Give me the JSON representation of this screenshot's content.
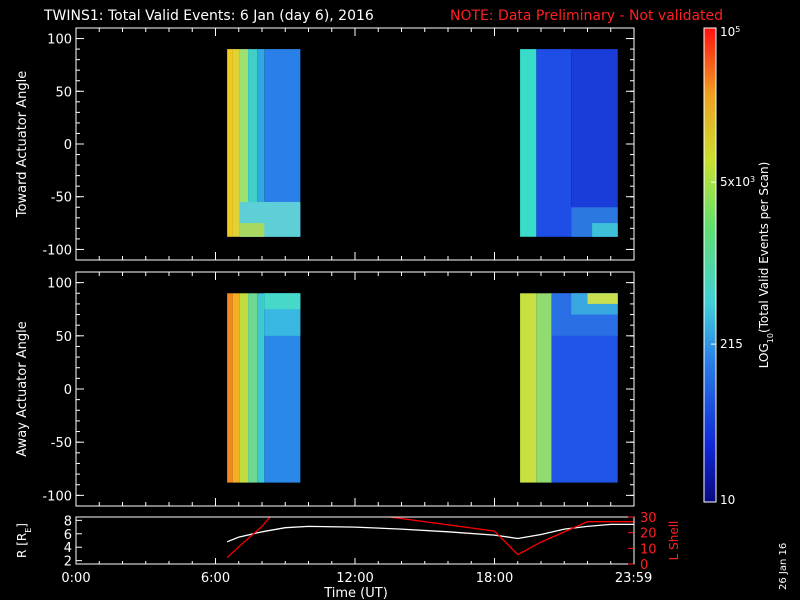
{
  "header": {
    "title": "TWINS1: Total Valid Events:  6 Jan (day   6), 2016",
    "note": "NOTE: Data Preliminary - Not validated"
  },
  "colors": {
    "background": "#000000",
    "axis": "#ffffff",
    "note": "#ff0000",
    "r_line": "#ffffff",
    "lshell_line": "#ff0000"
  },
  "colorbar": {
    "label": "LOG10(Total Valid Events per Scan)",
    "label_main": "LOG",
    "label_sub": "10",
    "label_rest": "(Total Valid Events per Scan)",
    "ticks": [
      {
        "label": "10^5",
        "base": "10",
        "exp": "5",
        "value": 100000
      },
      {
        "label": "5x10^3",
        "base": "5x10",
        "exp": "3",
        "value": 5000
      },
      {
        "label": "215",
        "base": "215",
        "exp": "",
        "value": 215
      },
      {
        "label": "10",
        "base": "10",
        "exp": "",
        "value": 10
      }
    ],
    "range": [
      10,
      100000
    ],
    "scale": "log",
    "colormap": "rainbow (dark blue → cyan → green → yellow → red)"
  },
  "stamp": "26 Jan 16",
  "x_axis": {
    "label": "Time (UT)",
    "ticks": [
      "0:00",
      "6:00",
      "12:00",
      "18:00",
      "23:59"
    ],
    "tick_hours": [
      0,
      6,
      12,
      18,
      23.983
    ],
    "range_hours": [
      0,
      24
    ]
  },
  "chart_data": [
    {
      "type": "heatmap",
      "ylabel": "Toward Actuator Angle",
      "ylim": [
        -110,
        110
      ],
      "yticks": [
        100,
        50,
        0,
        -50,
        -100
      ],
      "ytick_labels": [
        "100",
        "50",
        "0",
        "-50",
        "-100"
      ],
      "angle_range": [
        -88,
        90
      ],
      "columns": [
        {
          "t_start": 6.5,
          "t_end": 6.75,
          "color": "#f0c820"
        },
        {
          "t_start": 6.75,
          "t_end": 7.05,
          "color": "#dfd33a"
        },
        {
          "t_start": 7.05,
          "t_end": 7.4,
          "color": "#a0e070"
        },
        {
          "t_start": 7.4,
          "t_end": 7.8,
          "color": "#40d0c8"
        },
        {
          "t_start": 7.8,
          "t_end": 8.1,
          "color": "#30a8e0"
        },
        {
          "t_start": 8.1,
          "t_end": 9.65,
          "color": "#2a80e8"
        },
        {
          "t_start": 19.1,
          "t_end": 19.8,
          "color": "#38dcc8"
        },
        {
          "t_start": 19.8,
          "t_end": 21.3,
          "color": "#1f4ee6"
        },
        {
          "t_start": 21.3,
          "t_end": 23.3,
          "color": "#1a3cd8"
        }
      ],
      "patches": [
        {
          "t_start": 7.05,
          "t_end": 9.65,
          "a_lo": -88,
          "a_hi": -55,
          "color": "#5ecfd6"
        },
        {
          "t_start": 7.05,
          "t_end": 8.1,
          "a_lo": -88,
          "a_hi": -75,
          "color": "#a8d860"
        },
        {
          "t_start": 21.3,
          "t_end": 23.3,
          "a_lo": -88,
          "a_hi": -60,
          "color": "#2a78e0"
        },
        {
          "t_start": 22.2,
          "t_end": 23.3,
          "a_lo": -88,
          "a_hi": -75,
          "color": "#3ec0d8"
        }
      ]
    },
    {
      "type": "heatmap",
      "ylabel": "Away Actuator Angle",
      "ylim": [
        -110,
        110
      ],
      "yticks": [
        100,
        50,
        0,
        -50,
        -100
      ],
      "ytick_labels": [
        "100",
        "50",
        "0",
        "-50",
        "-100"
      ],
      "angle_range": [
        -88,
        90
      ],
      "columns": [
        {
          "t_start": 6.5,
          "t_end": 6.75,
          "color": "#f08a20"
        },
        {
          "t_start": 6.75,
          "t_end": 7.05,
          "color": "#f0b020"
        },
        {
          "t_start": 7.05,
          "t_end": 7.4,
          "color": "#c0dc40"
        },
        {
          "t_start": 7.4,
          "t_end": 7.8,
          "color": "#70d890"
        },
        {
          "t_start": 7.8,
          "t_end": 8.1,
          "color": "#40c8d0"
        },
        {
          "t_start": 8.1,
          "t_end": 9.65,
          "color": "#2a88e8"
        },
        {
          "t_start": 19.1,
          "t_end": 19.8,
          "color": "#c8e040"
        },
        {
          "t_start": 19.8,
          "t_end": 20.45,
          "color": "#90dc70"
        },
        {
          "t_start": 20.45,
          "t_end": 23.3,
          "color": "#1f54e6"
        }
      ],
      "patches": [
        {
          "t_start": 8.1,
          "t_end": 9.65,
          "a_lo": 50,
          "a_hi": 90,
          "color": "#38b8e0"
        },
        {
          "t_start": 8.1,
          "t_end": 9.65,
          "a_lo": 75,
          "a_hi": 90,
          "color": "#46d8c8"
        },
        {
          "t_start": 20.45,
          "t_end": 23.3,
          "a_lo": 50,
          "a_hi": 90,
          "color": "#2a70e4"
        },
        {
          "t_start": 21.3,
          "t_end": 23.3,
          "a_lo": 70,
          "a_hi": 90,
          "color": "#3aa8e0"
        },
        {
          "t_start": 22.0,
          "t_end": 23.3,
          "a_lo": 80,
          "a_hi": 90,
          "color": "#c8e050"
        }
      ]
    },
    {
      "type": "line",
      "ylabel": "R (RE)",
      "ylabel_main": "R [R",
      "ylabel_sub": "E",
      "ylabel_end": "]",
      "ylim": [
        1.5,
        8.5
      ],
      "yticks": [
        8,
        6,
        4,
        2
      ],
      "ytick_labels": [
        "8",
        "6",
        "4",
        "2"
      ],
      "y2label": "L Shell",
      "y2lim": [
        0,
        30
      ],
      "y2ticks": [
        30,
        20,
        10,
        0
      ],
      "y2tick_labels": [
        "30",
        "20",
        "10",
        "0"
      ],
      "series": [
        {
          "axis": "left",
          "color": "#ffffff",
          "x": [
            6.5,
            7.0,
            8.0,
            9.0,
            10.0,
            12.0,
            14.0,
            16.0,
            18.0,
            19.0,
            20.0,
            21.0,
            22.0,
            23.0,
            24.0
          ],
          "y": [
            4.8,
            5.5,
            6.3,
            6.9,
            7.1,
            7.0,
            6.7,
            6.3,
            5.8,
            5.3,
            5.9,
            6.7,
            7.1,
            7.4,
            7.4
          ]
        },
        {
          "axis": "right",
          "color": "#ff0000",
          "x": [
            6.5,
            7.0,
            8.0,
            8.4,
            13.0,
            18.0,
            19.0,
            20.0,
            22.0,
            24.0
          ],
          "y": [
            4,
            11,
            24,
            31,
            31,
            21,
            6,
            14,
            27,
            27
          ]
        }
      ]
    }
  ]
}
